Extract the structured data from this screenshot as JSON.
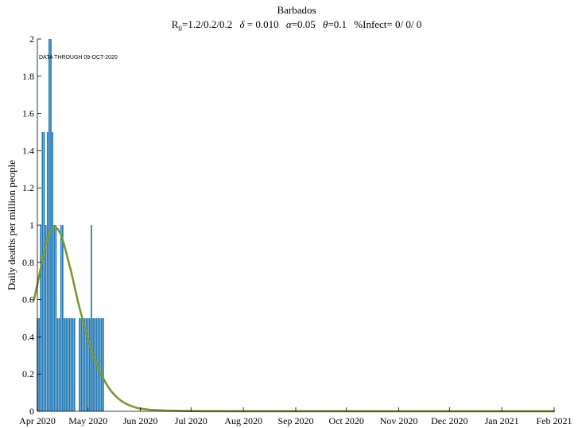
{
  "chart_data": {
    "type": "bar",
    "title": "Barbados",
    "subtitle_parts": {
      "r0_label": "R",
      "r0_sub": "0",
      "r0_value": "=1.2/0.2/0.2",
      "delta_symbol": "δ",
      "delta_value": " = 0.010",
      "alpha_symbol": "α",
      "alpha_value": "=0.05",
      "theta_symbol": "θ",
      "theta_value": "=0.1",
      "infect_text": "%Infect= 0/ 0/ 0"
    },
    "annotation": "DATA THROUGH 09-OCT-2020",
    "xlabel": "",
    "ylabel": "Daily deaths per million people",
    "ylim": [
      0,
      2
    ],
    "xlim": [
      "2020-04-01",
      "2021-02-01"
    ],
    "yticks": [
      0,
      0.2,
      0.4,
      0.6,
      0.8,
      1,
      1.2,
      1.4,
      1.6,
      1.8,
      2
    ],
    "ytick_labels": [
      "0",
      "0.2",
      "0.4",
      "0.6",
      "0.8",
      "1",
      "1.2",
      "1.4",
      "1.6",
      "1.8",
      "2"
    ],
    "xticks": [
      "2020-04-01",
      "2020-05-01",
      "2020-06-01",
      "2020-07-01",
      "2020-08-01",
      "2020-09-01",
      "2020-10-01",
      "2020-11-01",
      "2020-12-01",
      "2021-01-01",
      "2021-02-01"
    ],
    "xtick_labels": [
      "Apr 2020",
      "May 2020",
      "Jun 2020",
      "Jul 2020",
      "Aug 2020",
      "Sep 2020",
      "Oct 2020",
      "Nov 2020",
      "Dec 2020",
      "Jan 2021",
      "Feb 2021"
    ],
    "series": [
      {
        "kind": "bar",
        "color": "#1f77b4",
        "x": [
          "2020-04-01",
          "2020-04-02",
          "2020-04-03",
          "2020-04-04",
          "2020-04-05",
          "2020-04-06",
          "2020-04-07",
          "2020-04-08",
          "2020-04-09",
          "2020-04-10",
          "2020-04-11",
          "2020-04-12",
          "2020-04-13",
          "2020-04-14",
          "2020-04-15",
          "2020-04-16",
          "2020-04-17",
          "2020-04-18",
          "2020-04-19",
          "2020-04-20",
          "2020-04-21",
          "2020-04-22",
          "2020-04-23",
          "2020-04-24",
          "2020-04-25",
          "2020-04-26",
          "2020-04-27",
          "2020-04-28",
          "2020-04-29",
          "2020-04-30",
          "2020-05-01",
          "2020-05-02",
          "2020-05-03",
          "2020-05-04",
          "2020-05-05",
          "2020-05-06",
          "2020-05-07",
          "2020-05-08",
          "2020-05-09",
          "2020-05-10"
        ],
        "values": [
          0.5,
          0.5,
          1,
          1.5,
          1.5,
          1,
          1.5,
          2,
          2,
          1.5,
          1,
          1,
          0.5,
          0.5,
          1,
          1,
          0.5,
          0.5,
          0.5,
          0.5,
          0.5,
          0.5,
          0.5,
          0,
          0,
          0.5,
          0.5,
          0.5,
          0.5,
          0.5,
          0.5,
          0.5,
          1,
          0.5,
          0.5,
          0.5,
          0.5,
          0.5,
          0.5,
          0.5
        ]
      },
      {
        "kind": "line",
        "color": "#7a9a2a",
        "x": [
          "2020-03-30",
          "2020-04-01",
          "2020-04-03",
          "2020-04-05",
          "2020-04-07",
          "2020-04-09",
          "2020-04-11",
          "2020-04-13",
          "2020-04-15",
          "2020-04-17",
          "2020-04-19",
          "2020-04-21",
          "2020-04-23",
          "2020-04-25",
          "2020-04-27",
          "2020-04-29",
          "2020-05-01",
          "2020-05-03",
          "2020-05-05",
          "2020-05-07",
          "2020-05-09",
          "2020-05-11",
          "2020-05-13",
          "2020-05-15",
          "2020-05-17",
          "2020-05-19",
          "2020-05-21",
          "2020-05-23",
          "2020-05-25",
          "2020-05-27",
          "2020-05-29",
          "2020-05-31",
          "2020-06-03",
          "2020-06-07",
          "2020-06-11",
          "2020-06-15",
          "2020-06-20",
          "2020-06-26",
          "2020-07-05",
          "2020-07-15",
          "2020-08-01",
          "2020-09-01",
          "2020-10-01",
          "2020-11-01",
          "2020-12-01",
          "2021-01-01",
          "2021-02-01"
        ],
        "values": [
          0.6,
          0.68,
          0.77,
          0.86,
          0.93,
          0.97,
          0.99,
          0.98,
          0.95,
          0.89,
          0.82,
          0.75,
          0.67,
          0.59,
          0.52,
          0.45,
          0.39,
          0.33,
          0.28,
          0.235,
          0.195,
          0.16,
          0.13,
          0.105,
          0.085,
          0.068,
          0.054,
          0.043,
          0.034,
          0.027,
          0.021,
          0.016,
          0.012,
          0.008,
          0.006,
          0.004,
          0.003,
          0.002,
          0.001,
          0.0007,
          0.0004,
          0.0002,
          0.0001,
          5e-05,
          2e-05,
          1e-05,
          0.0
        ]
      }
    ]
  }
}
